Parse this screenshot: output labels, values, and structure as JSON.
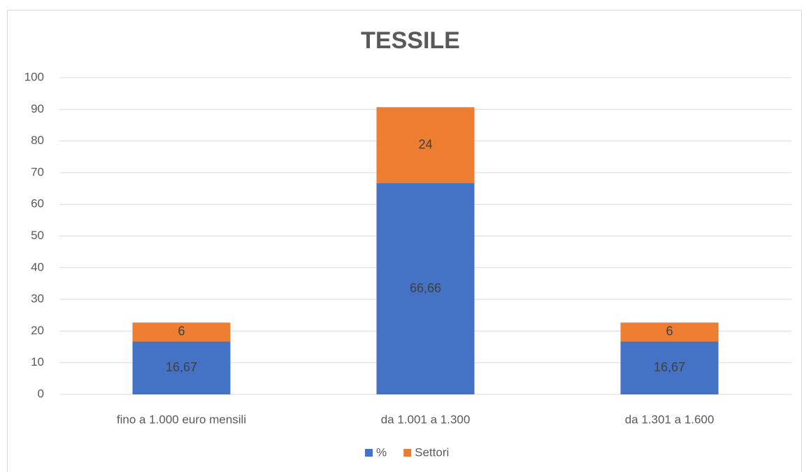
{
  "chart_data": {
    "type": "bar",
    "stacked": true,
    "title": "TESSILE",
    "categories": [
      "fino a 1.000 euro mensili",
      "da 1.001 a 1.300",
      "da 1.301 a 1.600"
    ],
    "series": [
      {
        "name": "%",
        "color": "#4472c4",
        "values": [
          16.67,
          66.66,
          16.67
        ],
        "value_labels": [
          "16,67",
          "66,66",
          "16,67"
        ]
      },
      {
        "name": "Settori",
        "color": "#ed7d31",
        "values": [
          6,
          24,
          6
        ]
      }
    ],
    "ylim": [
      0,
      100
    ],
    "yticks": [
      0,
      10,
      20,
      30,
      40,
      50,
      60,
      70,
      80,
      90,
      100
    ],
    "grid": true,
    "legend": "bottom"
  }
}
